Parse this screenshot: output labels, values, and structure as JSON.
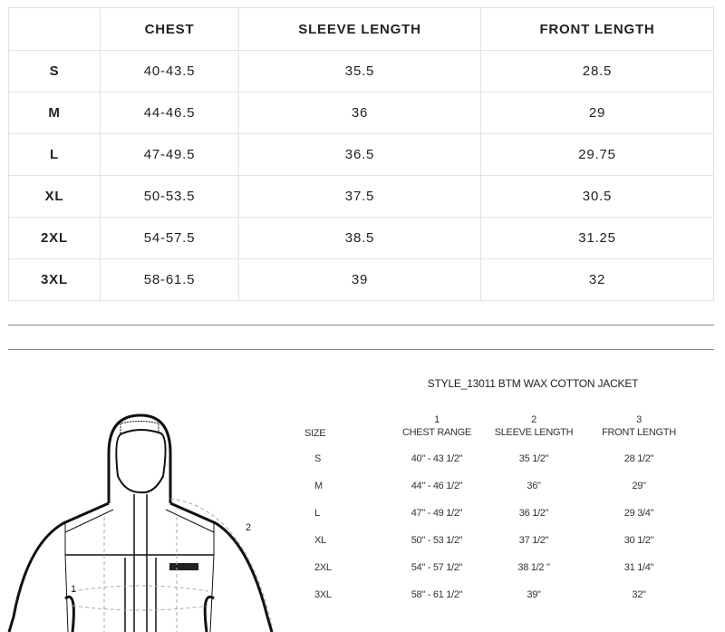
{
  "top_table": {
    "headers": [
      "",
      "CHEST",
      "SLEEVE LENGTH",
      "FRONT LENGTH"
    ],
    "rows": [
      [
        "S",
        "40-43.5",
        "35.5",
        "28.5"
      ],
      [
        "M",
        "44-46.5",
        "36",
        "29"
      ],
      [
        "L",
        "47-49.5",
        "36.5",
        "29.75"
      ],
      [
        "XL",
        "50-53.5",
        "37.5",
        "30.5"
      ],
      [
        "2XL",
        "54-57.5",
        "38.5",
        "31.25"
      ],
      [
        "3XL",
        "58-61.5",
        "39",
        "32"
      ]
    ]
  },
  "spec": {
    "title": "STYLE_13011 BTM WAX COTTON JACKET",
    "size_label": "SIZE",
    "columns": [
      {
        "number": "1",
        "label": "CHEST RANGE"
      },
      {
        "number": "2",
        "label": "SLEEVE LENGTH"
      },
      {
        "number": "3",
        "label": "FRONT LENGTH"
      }
    ],
    "rows": [
      [
        "S",
        "40\" - 43 1/2\"",
        "35 1/2\"",
        "28 1/2\""
      ],
      [
        "M",
        "44\" - 46 1/2\"",
        "36\"",
        "29\""
      ],
      [
        "L",
        "47\" - 49 1/2\"",
        "36 1/2\"",
        "29 3/4\""
      ],
      [
        "XL",
        "50\" - 53 1/2\"",
        "37 1/2\"",
        "30 1/2\""
      ],
      [
        "2XL",
        "54\" - 57 1/2\"",
        "38 1/2 \"",
        "31 1/4\""
      ],
      [
        "3XL",
        "58\" - 61 1/2\"",
        "39\"",
        "32\""
      ]
    ],
    "diagram_labels": {
      "chest": "1",
      "sleeve": "2"
    }
  }
}
